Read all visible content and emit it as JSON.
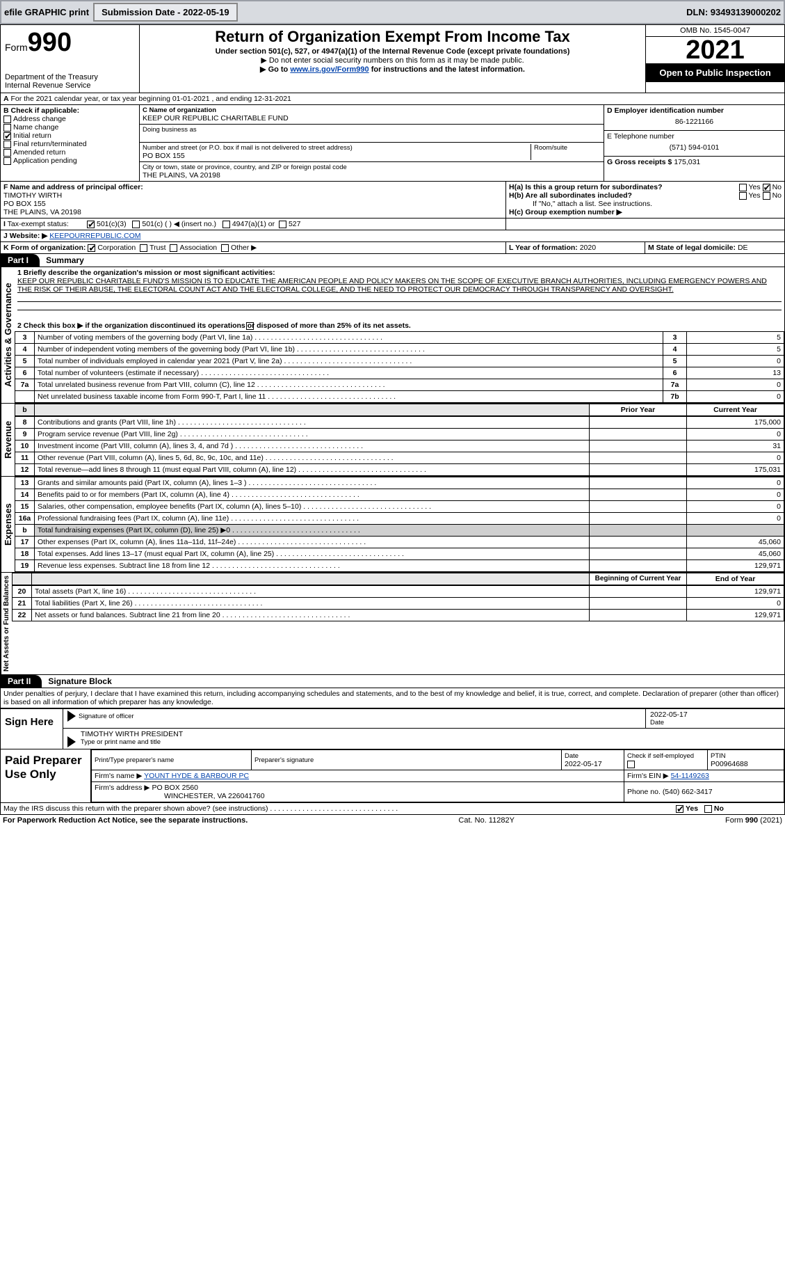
{
  "topbar": {
    "efile_label": "efile GRAPHIC print",
    "submission_label": "Submission Date - 2022-05-19",
    "dln_label": "DLN: 93493139000202"
  },
  "header": {
    "form_word": "Form",
    "form_no": "990",
    "dept1": "Department of the Treasury",
    "dept2": "Internal Revenue Service",
    "title": "Return of Organization Exempt From Income Tax",
    "sub1": "Under section 501(c), 527, or 4947(a)(1) of the Internal Revenue Code (except private foundations)",
    "sub2a": "▶ Do not enter social security numbers on this form as it may be made public.",
    "sub2b_pre": "▶ Go to ",
    "sub2b_link": "www.irs.gov/Form990",
    "sub2b_post": " for instructions and the latest information.",
    "omb": "OMB No. 1545-0047",
    "year": "2021",
    "open_pub": "Open to Public Inspection"
  },
  "lineA": "For the 2021 calendar year, or tax year beginning 01-01-2021    , and ending 12-31-2021",
  "boxB": {
    "label": "B Check if applicable:",
    "opts": [
      "Address change",
      "Name change",
      "Initial return",
      "Final return/terminated",
      "Amended return",
      "Application pending"
    ],
    "checked_index": 2
  },
  "boxC": {
    "label_name": "C Name of organization",
    "name": "KEEP OUR REPUBLIC CHARITABLE FUND",
    "dba_label": "Doing business as",
    "addr_label": "Number and street (or P.O. box if mail is not delivered to street address)",
    "room_label": "Room/suite",
    "addr": "PO BOX 155",
    "city_label": "City or town, state or province, country, and ZIP or foreign postal code",
    "city": "THE PLAINS, VA  20198"
  },
  "boxD": {
    "label": "D Employer identification number",
    "value": "86-1221166"
  },
  "boxE": {
    "label": "E Telephone number",
    "value": "(571) 594-0101"
  },
  "boxG": {
    "label": "G Gross receipts $",
    "value": "175,031"
  },
  "boxF": {
    "label": "F  Name and address of principal officer:",
    "line1": "TIMOTHY WIRTH",
    "line2": "PO BOX 155",
    "line3": "THE PLAINS, VA  20198"
  },
  "boxH": {
    "a_label": "H(a)  Is this a group return for subordinates?",
    "b_label": "H(b)  Are all subordinates included?",
    "b_note": "If \"No,\" attach a list. See instructions.",
    "c_label": "H(c)  Group exemption number ▶",
    "yes": "Yes",
    "no": "No"
  },
  "taxexempt": {
    "label": "Tax-exempt status:",
    "c3": "501(c)(3)",
    "cblank": "501(c) (   ) ◀ (insert no.)",
    "a1": "4947(a)(1) or",
    "s527": "527"
  },
  "boxJ": {
    "label": "J    Website: ▶",
    "value": "KEEPOURREPUBLIC.COM"
  },
  "boxK": {
    "label": "K Form of organization:",
    "opts": [
      "Corporation",
      "Trust",
      "Association",
      "Other ▶"
    ],
    "checked_index": 0
  },
  "boxL": {
    "label": "L Year of formation:",
    "value": "2020"
  },
  "boxM": {
    "label": "M State of legal domicile:",
    "value": "DE"
  },
  "part1": {
    "tab": "Part I",
    "title": "Summary"
  },
  "summary": {
    "q1_label": "1  Briefly describe the organization's mission or most significant activities:",
    "q1_text": "KEEP OUR REPUBLIC CHARITABLE FUND'S MISSION IS TO EDUCATE THE AMERICAN PEOPLE AND POLICY MAKERS ON THE SCOPE OF EXECUTIVE BRANCH AUTHORITIES, INCLUDING EMERGENCY POWERS AND THE RISK OF THEIR ABUSE, THE ELECTORAL COUNT ACT AND THE ELECTORAL COLLEGE, AND THE NEED TO PROTECT OUR DEMOCRACY THROUGH TRANSPARENCY AND OVERSIGHT.",
    "q2_label": "2   Check this box ▶       if the organization discontinued its operations or disposed of more than 25% of its net assets.",
    "rows_gov": [
      {
        "n": "3",
        "t": "Number of voting members of the governing body (Part VI, line 1a)",
        "box": "3",
        "v": "5"
      },
      {
        "n": "4",
        "t": "Number of independent voting members of the governing body (Part VI, line 1b)",
        "box": "4",
        "v": "5"
      },
      {
        "n": "5",
        "t": "Total number of individuals employed in calendar year 2021 (Part V, line 2a)",
        "box": "5",
        "v": "0"
      },
      {
        "n": "6",
        "t": "Total number of volunteers (estimate if necessary)",
        "box": "6",
        "v": "13"
      },
      {
        "n": "7a",
        "t": "Total unrelated business revenue from Part VIII, column (C), line 12",
        "box": "7a",
        "v": "0"
      },
      {
        "n": "",
        "t": "Net unrelated business taxable income from Form 990-T, Part I, line 11",
        "box": "7b",
        "v": "0"
      }
    ],
    "prior_label": "Prior Year",
    "current_label": "Current Year",
    "rows_rev": [
      {
        "n": "8",
        "t": "Contributions and grants (Part VIII, line 1h)",
        "cy": "175,000"
      },
      {
        "n": "9",
        "t": "Program service revenue (Part VIII, line 2g)",
        "cy": "0"
      },
      {
        "n": "10",
        "t": "Investment income (Part VIII, column (A), lines 3, 4, and 7d )",
        "cy": "31"
      },
      {
        "n": "11",
        "t": "Other revenue (Part VIII, column (A), lines 5, 6d, 8c, 9c, 10c, and 11e)",
        "cy": "0"
      },
      {
        "n": "12",
        "t": "Total revenue—add lines 8 through 11 (must equal Part VIII, column (A), line 12)",
        "cy": "175,031"
      }
    ],
    "rows_exp": [
      {
        "n": "13",
        "t": "Grants and similar amounts paid (Part IX, column (A), lines 1–3 )",
        "cy": "0"
      },
      {
        "n": "14",
        "t": "Benefits paid to or for members (Part IX, column (A), line 4)",
        "cy": "0"
      },
      {
        "n": "15",
        "t": "Salaries, other compensation, employee benefits (Part IX, column (A), lines 5–10)",
        "cy": "0"
      },
      {
        "n": "16a",
        "t": "Professional fundraising fees (Part IX, column (A), line 11e)",
        "cy": "0"
      },
      {
        "n": "b",
        "t": "Total fundraising expenses (Part IX, column (D), line 25) ▶0",
        "cy": "",
        "shade": true
      },
      {
        "n": "17",
        "t": "Other expenses (Part IX, column (A), lines 11a–11d, 11f–24e)",
        "cy": "45,060"
      },
      {
        "n": "18",
        "t": "Total expenses. Add lines 13–17 (must equal Part IX, column (A), line 25)",
        "cy": "45,060"
      },
      {
        "n": "19",
        "t": "Revenue less expenses. Subtract line 18 from line 12",
        "cy": "129,971"
      }
    ],
    "begin_label": "Beginning of Current Year",
    "end_label": "End of Year",
    "rows_net": [
      {
        "n": "20",
        "t": "Total assets (Part X, line 16)",
        "cy": "129,971"
      },
      {
        "n": "21",
        "t": "Total liabilities (Part X, line 26)",
        "cy": "0"
      },
      {
        "n": "22",
        "t": "Net assets or fund balances. Subtract line 21 from line 20",
        "cy": "129,971"
      }
    ],
    "vlabels": {
      "gov": "Activities & Governance",
      "rev": "Revenue",
      "exp": "Expenses",
      "net": "Net Assets or Fund Balances"
    },
    "b_word": "b"
  },
  "part2": {
    "tab": "Part II",
    "title": "Signature Block",
    "decl": "Under penalties of perjury, I declare that I have examined this return, including accompanying schedules and statements, and to the best of my knowledge and belief, it is true, correct, and complete. Declaration of preparer (other than officer) is based on all information of which preparer has any knowledge."
  },
  "sign": {
    "here": "Sign Here",
    "sig_officer": "Signature of officer",
    "date": "Date",
    "date_val": "2022-05-17",
    "name": "TIMOTHY WIRTH  PRESIDENT",
    "name_lab": "Type or print name and title"
  },
  "paid": {
    "label": "Paid Preparer Use Only",
    "h": [
      "Print/Type preparer's name",
      "Preparer's signature",
      "Date",
      "",
      "PTIN"
    ],
    "date": "2022-05-17",
    "check_lab": "Check         if self-employed",
    "ptin": "P00964688",
    "firm_name_lab": "Firm's name    ▶",
    "firm_name": "YOUNT HYDE & BARBOUR PC",
    "firm_ein_lab": "Firm's EIN ▶",
    "firm_ein": "54-1149263",
    "firm_addr_lab": "Firm's address ▶",
    "firm_addr1": "PO BOX 2560",
    "firm_addr2": "WINCHESTER, VA  226041760",
    "phone_lab": "Phone no.",
    "phone": "(540) 662-3417"
  },
  "discuss": {
    "q": "May the IRS discuss this return with the preparer shown above? (see instructions)",
    "yes": "Yes",
    "no": "No"
  },
  "footer": {
    "left": "For Paperwork Reduction Act Notice, see the separate instructions.",
    "mid": "Cat. No. 11282Y",
    "right_pre": "Form ",
    "right_form": "990",
    "right_yr": " (2021)"
  }
}
